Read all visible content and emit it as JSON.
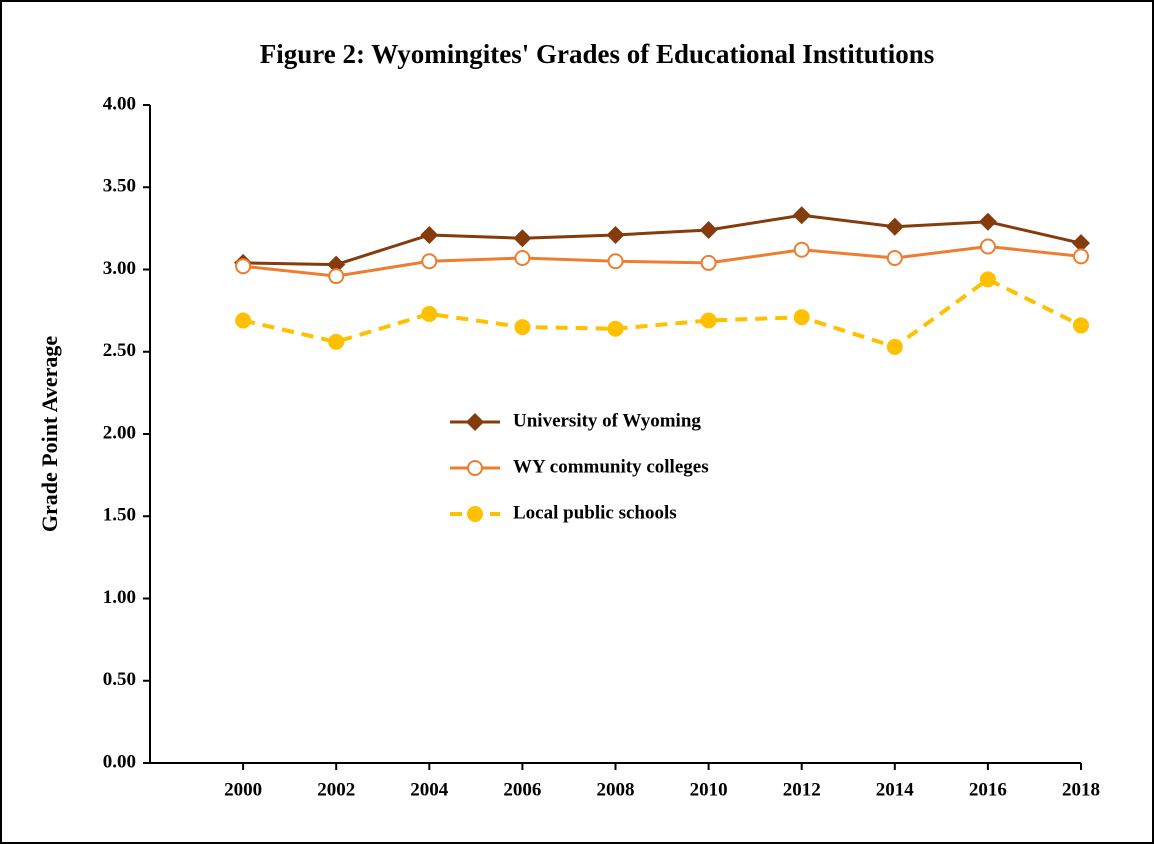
{
  "chart_data": {
    "type": "line",
    "title": "Figure 2: Wyomingites' Grades of Educational Institutions",
    "y_label": "Grade Point Average",
    "x": [
      2000,
      2002,
      2004,
      2006,
      2008,
      2010,
      2012,
      2014,
      2016,
      2018
    ],
    "xlim": [
      1998,
      2018
    ],
    "xticks": [
      2000,
      2002,
      2004,
      2006,
      2008,
      2010,
      2012,
      2014,
      2016,
      2018
    ],
    "ylim": [
      0,
      4
    ],
    "yticks": [
      {
        "value": 0,
        "label": "0.00"
      },
      {
        "value": 0.5,
        "label": "0.50"
      },
      {
        "value": 1,
        "label": "1.00"
      },
      {
        "value": 1.5,
        "label": "1.50"
      },
      {
        "value": 2,
        "label": "2.00"
      },
      {
        "value": 2.5,
        "label": "2.50"
      },
      {
        "value": 3,
        "label": "3.00"
      },
      {
        "value": 3.5,
        "label": "3.50"
      },
      {
        "value": 4,
        "label": "4.00"
      }
    ],
    "grid": false,
    "legend": "center",
    "series": [
      {
        "name": "University of Wyoming",
        "color": "#843c0c",
        "marker": "diamond",
        "dashed": false,
        "values": [
          3.04,
          3.03,
          3.21,
          3.19,
          3.21,
          3.24,
          3.33,
          3.26,
          3.29,
          3.16
        ]
      },
      {
        "name": "WY community colleges",
        "color": "#ed7d31",
        "marker": "open-circle",
        "dashed": false,
        "values": [
          3.02,
          2.96,
          3.05,
          3.07,
          3.05,
          3.04,
          3.12,
          3.07,
          3.14,
          3.08
        ]
      },
      {
        "name": "Local public schools",
        "color": "#ffc000",
        "marker": "circle",
        "dashed": true,
        "values": [
          2.69,
          2.56,
          2.73,
          2.65,
          2.64,
          2.69,
          2.71,
          2.53,
          2.94,
          2.66
        ]
      }
    ]
  }
}
